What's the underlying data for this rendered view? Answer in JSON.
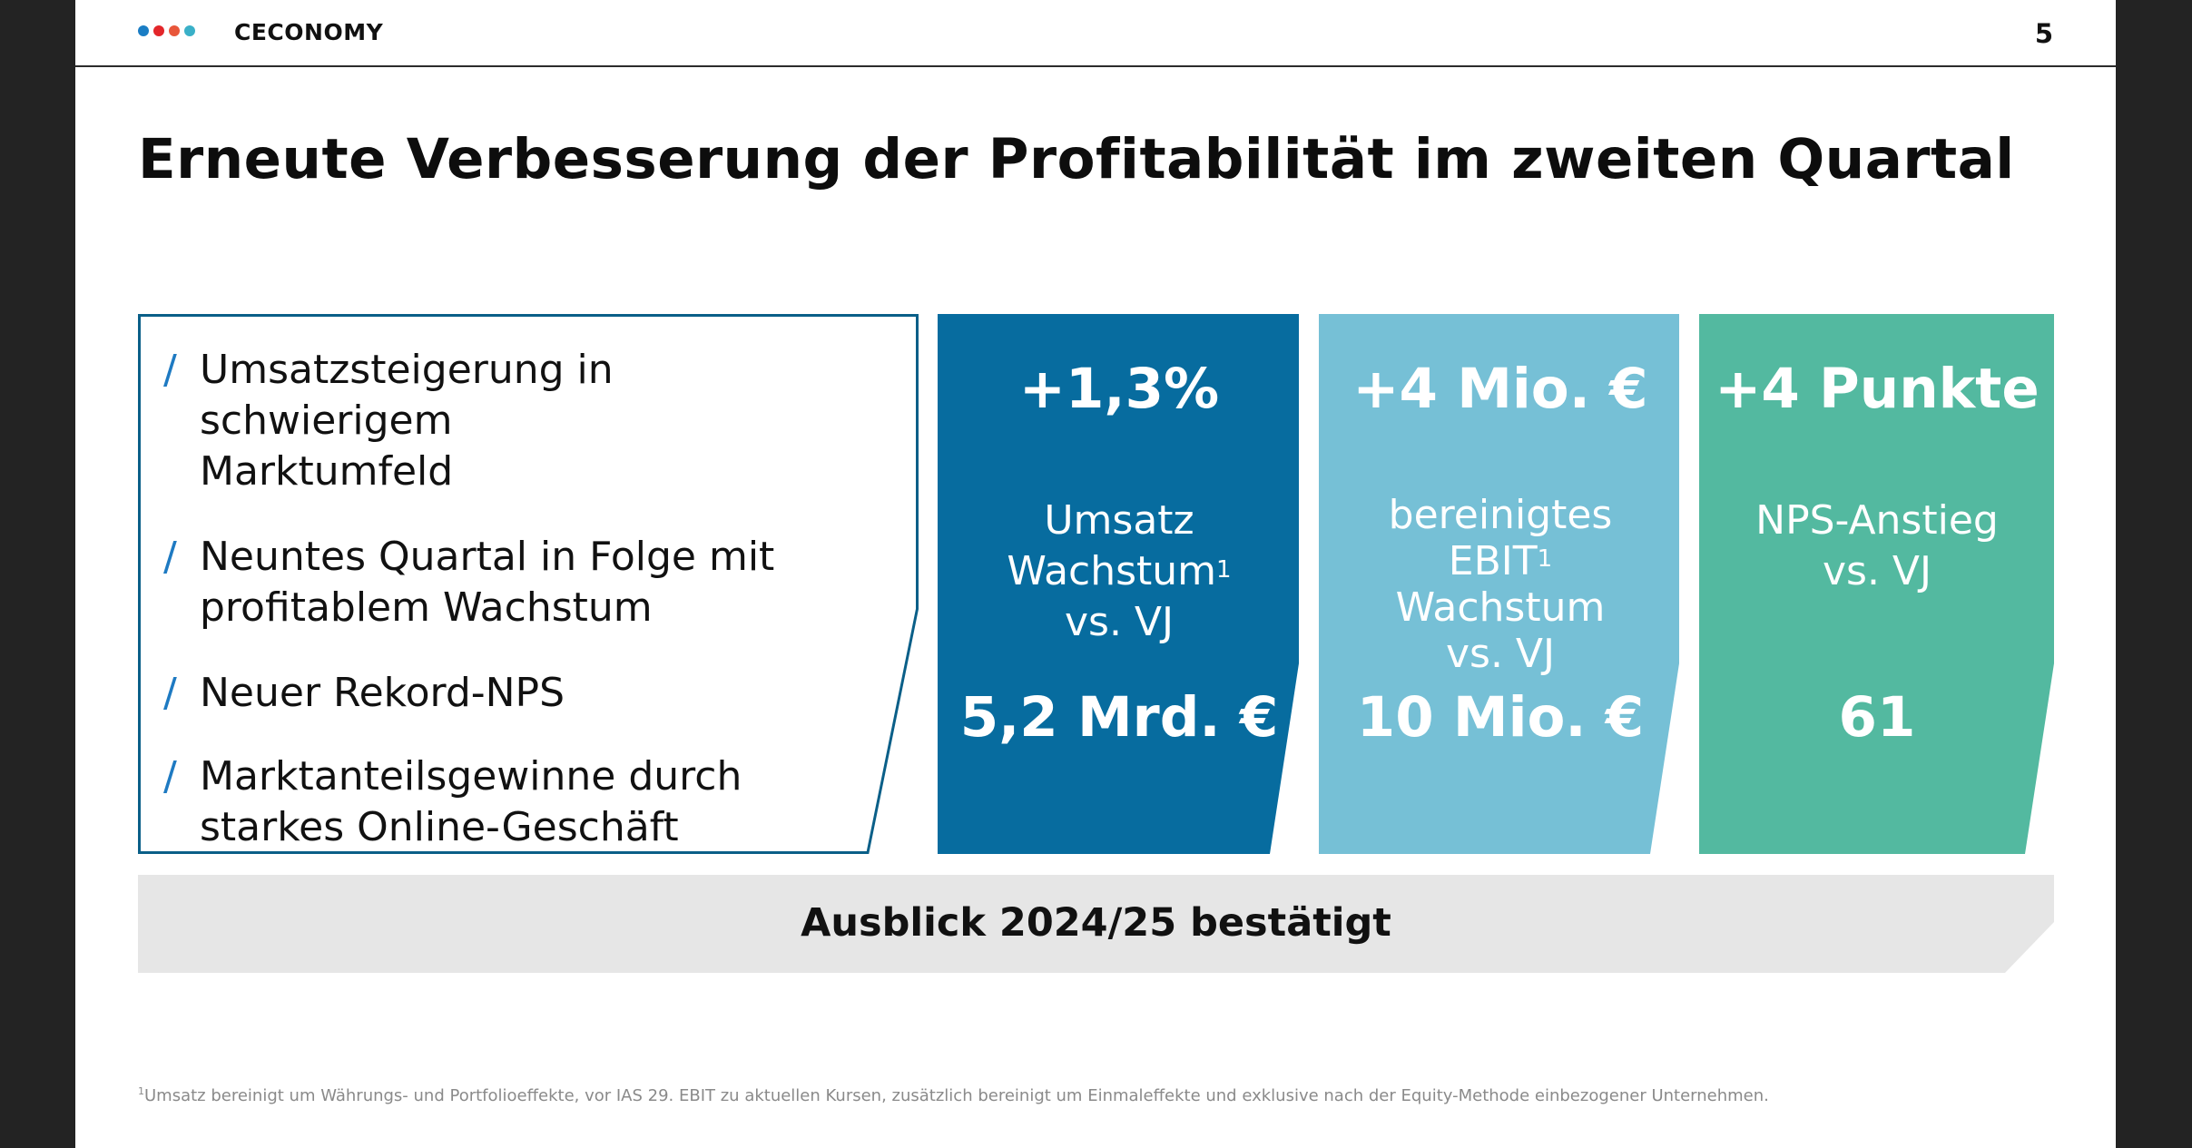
{
  "header": {
    "brand": "CECONOMY",
    "page_number": "5",
    "logo_dot_colors": [
      "#1a7dc4",
      "#e3262a",
      "#e8563a",
      "#3ab0c8"
    ]
  },
  "title": "Erneute Verbesserung der Profitabilität im zweiten Quartal",
  "bullets": [
    {
      "line1": "Umsatzsteigerung in schwierigem",
      "line2": "Marktumfeld"
    },
    {
      "line1": "Neuntes Quartal in Folge mit",
      "line2": "profitablem Wachstum"
    },
    {
      "line1": "Neuer Rekord-NPS",
      "line2": ""
    },
    {
      "line1": "Marktanteilsgewinne durch",
      "line2": "starkes Online-Geschäft"
    }
  ],
  "bullet_marker": "/",
  "cards": [
    {
      "headline": "+1,3%",
      "desc": [
        "Umsatz",
        "Wachstum",
        "vs. VJ"
      ],
      "footnote_mark": "1",
      "value": "5,2 Mrd. €",
      "color": "#076c9f"
    },
    {
      "headline": "+4 Mio. €",
      "desc": [
        "bereinigtes",
        "EBIT",
        "Wachstum",
        "vs. VJ"
      ],
      "footnote_mark": "1",
      "value": "10 Mio. €",
      "color": "#76c0d6"
    },
    {
      "headline": "+4 Punkte",
      "desc": [
        "NPS-Anstieg",
        "vs. VJ"
      ],
      "value": "61",
      "color": "#53b9a0"
    }
  ],
  "banner": {
    "text": "Ausblick 2024/25 bestätigt",
    "color": "#e6e6e6"
  },
  "footnote": {
    "mark": "1",
    "text": "Umsatz bereinigt um Währungs- und Portfolioeffekte, vor IAS 29. EBIT zu aktuellen Kursen, zusätzlich bereinigt um Einmaleffekte und exklusive nach der Equity-Methode einbezogener Unternehmen."
  }
}
